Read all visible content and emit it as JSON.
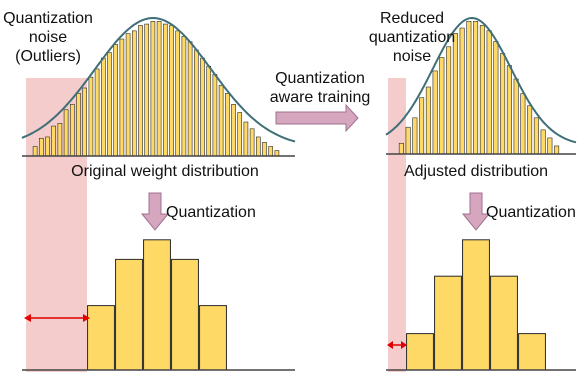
{
  "left_panel": {
    "noise_label_lines": [
      "Quantization",
      "noise",
      "(Outliers)"
    ],
    "distribution_label": "Original weight distribution",
    "quantization_label": "Quantization",
    "histogram_bars": [
      0.07,
      0.13,
      0.14,
      0.22,
      0.24,
      0.34,
      0.38,
      0.46,
      0.5,
      0.58,
      0.64,
      0.72,
      0.76,
      0.82,
      0.86,
      0.9,
      0.92,
      0.96,
      0.97,
      0.99,
      0.99,
      0.97,
      0.96,
      0.92,
      0.88,
      0.84,
      0.78,
      0.72,
      0.66,
      0.6,
      0.52,
      0.46,
      0.38,
      0.32,
      0.25,
      0.2,
      0.14,
      0.1,
      0.07,
      0.04
    ],
    "quantized_bars": [
      0.46,
      0.79,
      0.93,
      0.79,
      0.46
    ]
  },
  "middle": {
    "qat_label_lines": [
      "Quantization",
      "aware training"
    ]
  },
  "right_panel": {
    "noise_label_lines": [
      "Reduced",
      "quantization",
      "noise"
    ],
    "distribution_label": "Adjusted distribution",
    "quantization_label": "Quantization",
    "histogram_bars": [
      0.08,
      0.2,
      0.27,
      0.42,
      0.5,
      0.62,
      0.72,
      0.8,
      0.9,
      0.94,
      0.99,
      0.99,
      0.96,
      0.92,
      0.84,
      0.75,
      0.66,
      0.56,
      0.45,
      0.36,
      0.27,
      0.18,
      0.12,
      0.06
    ],
    "quantized_bars": [
      0.26,
      0.67,
      0.93,
      0.67,
      0.26
    ]
  },
  "colors": {
    "bar_fill": "#ffd966",
    "bar_stroke": "#2a2a2a",
    "curve": "#3f6f78",
    "noise_region": "#f4cccc",
    "arrow_fill": "#d5a6bd",
    "arrow_stroke": "#a07090",
    "range_arrow": "#e00000"
  }
}
